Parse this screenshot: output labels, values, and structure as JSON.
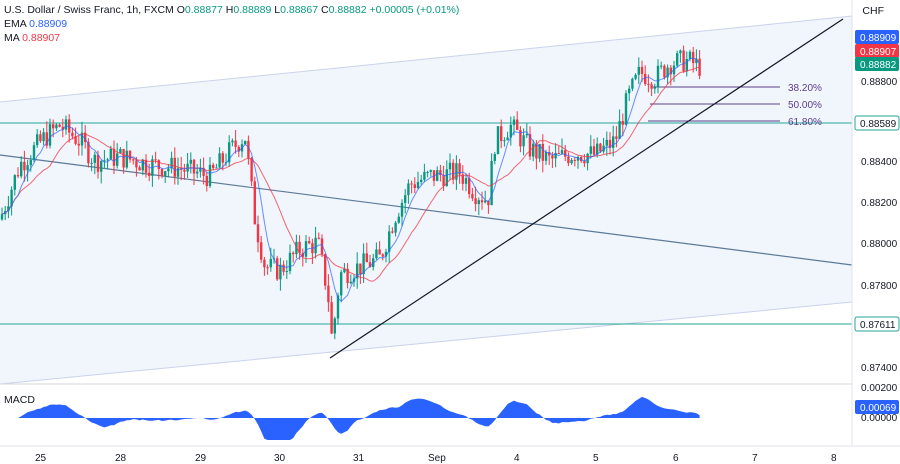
{
  "legend": {
    "title": "U.S. Dollar / Swiss Franc, 1h, FXCM",
    "o_label": "O",
    "o_value": "0.88877",
    "h_label": "H",
    "h_value": "0.88889",
    "l_label": "L",
    "l_value": "0.88867",
    "c_label": "C",
    "c_value": "0.88882",
    "change": "+0.00005 (+0.01%)",
    "ema_label": "EMA",
    "ema_value": "0.88909",
    "ma_label": "MA",
    "ma_value": "0.88907"
  },
  "currency": "CHF",
  "macd": {
    "label": "MACD",
    "value_tag": "0.00069",
    "ticks": [
      "0.00200",
      "0.00000"
    ]
  },
  "colors": {
    "up": "#089981",
    "down": "#f23645",
    "ema": "#2962ff",
    "ma": "#f23645",
    "level": "#26a69a",
    "channel_fill": "#eef2fb",
    "macd_fill": "#2962ff",
    "fib": "#5d3f8a"
  },
  "chart_data": {
    "type": "candlestick",
    "x_tick_labels": [
      "25",
      "28",
      "29",
      "30",
      "31",
      "Sep",
      "4",
      "5",
      "6",
      "7",
      "8"
    ],
    "y_tick_labels": [
      "0.88800",
      "0.88400",
      "0.88200",
      "0.88000",
      "0.87800",
      "0.87400"
    ],
    "ylim": [
      0.8726,
      0.8922
    ],
    "price_tags": [
      {
        "label": "EMA",
        "value": "0.88909",
        "color": "#2962ff"
      },
      {
        "label": "MA",
        "value": "0.88907",
        "color": "#f23645"
      },
      {
        "label": "Close",
        "value": "0.88882",
        "color": "#089981"
      }
    ],
    "horizontal_levels": [
      {
        "value": 0.88589,
        "label": "0.88589"
      },
      {
        "value": 0.87611,
        "label": "0.87611"
      }
    ],
    "fibonacci_levels": [
      {
        "label": "38.20%",
        "value": 0.8876
      },
      {
        "label": "50.00%",
        "value": 0.8868
      },
      {
        "label": "61.80%",
        "value": 0.886
      }
    ],
    "key_points_close": [
      {
        "date": "Aug 24",
        "price": 0.881
      },
      {
        "date": "Aug 25",
        "price": 0.8858
      },
      {
        "date": "Aug 28",
        "price": 0.8838
      },
      {
        "date": "Aug 29",
        "price": 0.8838
      },
      {
        "date": "Aug 30",
        "price": 0.8798
      },
      {
        "date": "Aug 31",
        "price": 0.878
      },
      {
        "date": "Sep 1",
        "price": 0.8828
      },
      {
        "date": "Sep 4",
        "price": 0.885
      },
      {
        "date": "Sep 5",
        "price": 0.8848
      },
      {
        "date": "Sep 6",
        "price": 0.8888
      }
    ],
    "extremes": {
      "swing_low": 0.8743,
      "swing_high": 0.8892
    }
  }
}
